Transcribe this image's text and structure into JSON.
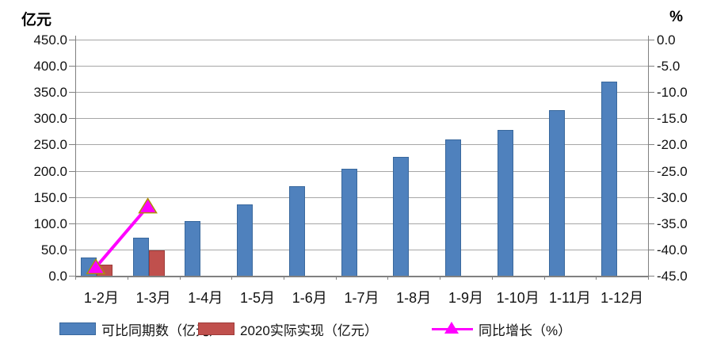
{
  "chart_data": {
    "type": "bar",
    "subtype": "bar-line-combo",
    "categories": [
      "1-2月",
      "1-3月",
      "1-4月",
      "1-5月",
      "1-6月",
      "1-7月",
      "1-8月",
      "1-9月",
      "1-10月",
      "1-11月",
      "1-12月"
    ],
    "series": [
      {
        "name": "可比同期数（亿元）",
        "type": "bar",
        "axis": "left",
        "color": "#4f81bd",
        "border_color": "#39689d",
        "values": [
          35,
          73,
          105,
          136,
          171,
          204,
          226,
          260,
          278,
          316,
          370
        ]
      },
      {
        "name": "2020实际实现（亿元）",
        "type": "bar",
        "axis": "left",
        "color": "#c0504d",
        "border_color": "#9e3b39",
        "values": [
          21.5,
          49,
          null,
          null,
          null,
          null,
          null,
          null,
          null,
          null,
          null
        ]
      },
      {
        "name": "同比增长（%）",
        "type": "line",
        "axis": "right",
        "color": "#ff00ff",
        "marker": "triangle",
        "marker_fill": "#ff00ff",
        "marker_border": "#ac9008",
        "values": [
          -43.4,
          -31.8,
          null,
          null,
          null,
          null,
          null,
          null,
          null,
          null,
          null
        ]
      }
    ],
    "left_axis": {
      "title": "亿元",
      "min": 0,
      "max": 450,
      "step": 50,
      "ticks": [
        "450.0",
        "400.0",
        "350.0",
        "300.0",
        "250.0",
        "200.0",
        "150.0",
        "100.0",
        "50.0",
        "0.0"
      ]
    },
    "right_axis": {
      "title": "%",
      "min": -45,
      "max": 0,
      "step": 5,
      "ticks": [
        "0.0",
        "-5.0",
        "-10.0",
        "-15.0",
        "-20.0",
        "-25.0",
        "-30.0",
        "-35.0",
        "-40.0",
        "-45.0"
      ]
    },
    "grid": true,
    "legend_position": "bottom",
    "axis_color": "#808080",
    "gridline_color": "#a6a6a6"
  }
}
